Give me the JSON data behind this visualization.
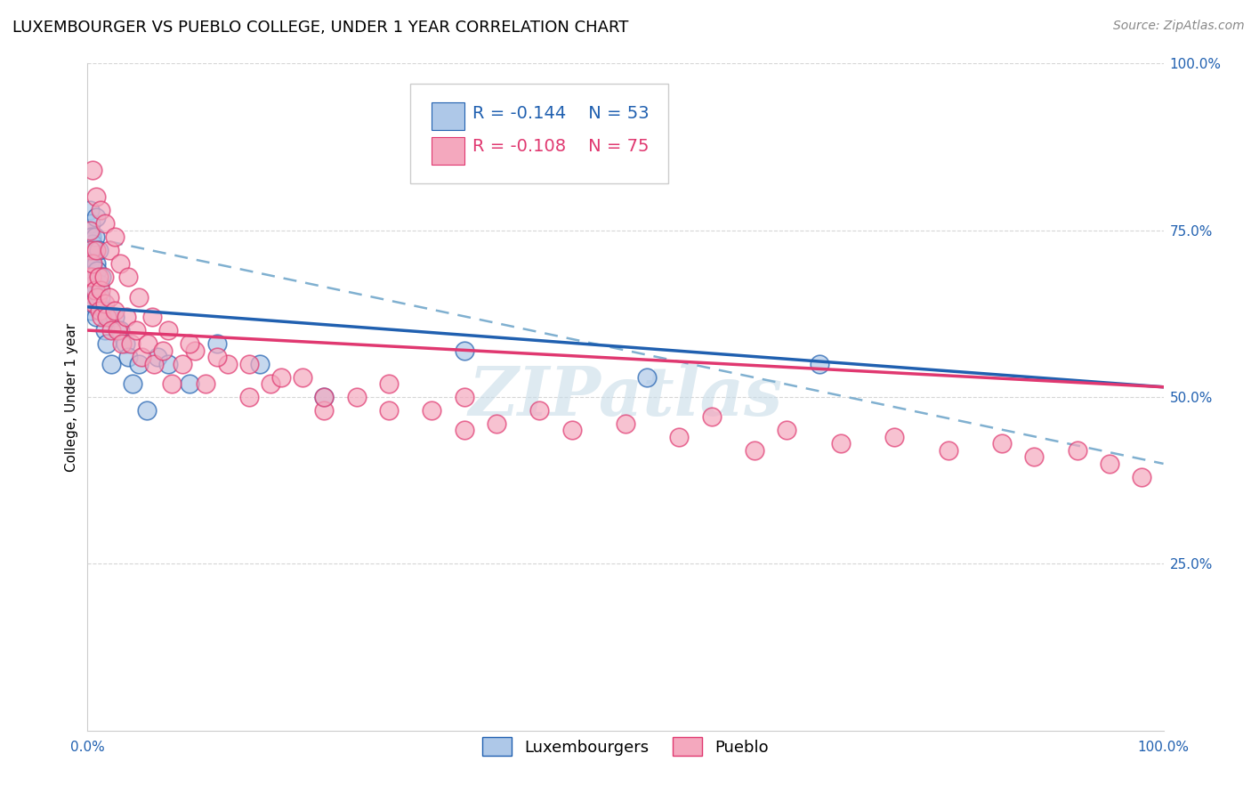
{
  "title": "LUXEMBOURGER VS PUEBLO COLLEGE, UNDER 1 YEAR CORRELATION CHART",
  "source": "Source: ZipAtlas.com",
  "ylabel": "College, Under 1 year",
  "R1": "-0.144",
  "N1": "53",
  "R2": "-0.108",
  "N2": "75",
  "blue_color": "#aec8e8",
  "pink_color": "#f4a8be",
  "blue_line_color": "#2060b0",
  "pink_line_color": "#e03870",
  "dashed_line_color": "#80b0d0",
  "watermark_color": "#c8dce8",
  "legend_label1": "Luxembourgers",
  "legend_label2": "Pueblo",
  "blue_scatter_x": [
    0.001,
    0.001,
    0.001,
    0.001,
    0.002,
    0.002,
    0.002,
    0.002,
    0.002,
    0.003,
    0.003,
    0.003,
    0.003,
    0.004,
    0.004,
    0.004,
    0.005,
    0.005,
    0.005,
    0.006,
    0.006,
    0.007,
    0.007,
    0.008,
    0.008,
    0.008,
    0.009,
    0.01,
    0.01,
    0.011,
    0.012,
    0.013,
    0.015,
    0.016,
    0.018,
    0.02,
    0.022,
    0.025,
    0.03,
    0.035,
    0.038,
    0.042,
    0.048,
    0.055,
    0.065,
    0.075,
    0.095,
    0.12,
    0.16,
    0.22,
    0.35,
    0.52,
    0.68
  ],
  "blue_scatter_y": [
    0.75,
    0.72,
    0.7,
    0.68,
    0.78,
    0.74,
    0.71,
    0.68,
    0.65,
    0.76,
    0.72,
    0.67,
    0.63,
    0.74,
    0.7,
    0.66,
    0.73,
    0.68,
    0.64,
    0.72,
    0.67,
    0.74,
    0.66,
    0.77,
    0.7,
    0.62,
    0.69,
    0.72,
    0.64,
    0.67,
    0.65,
    0.68,
    0.63,
    0.6,
    0.58,
    0.62,
    0.55,
    0.62,
    0.6,
    0.58,
    0.56,
    0.52,
    0.55,
    0.48,
    0.56,
    0.55,
    0.52,
    0.58,
    0.55,
    0.5,
    0.57,
    0.53,
    0.55
  ],
  "pink_scatter_x": [
    0.001,
    0.002,
    0.003,
    0.004,
    0.005,
    0.006,
    0.007,
    0.008,
    0.009,
    0.01,
    0.011,
    0.012,
    0.013,
    0.015,
    0.016,
    0.018,
    0.02,
    0.022,
    0.025,
    0.028,
    0.032,
    0.036,
    0.04,
    0.045,
    0.05,
    0.056,
    0.062,
    0.07,
    0.078,
    0.088,
    0.1,
    0.11,
    0.13,
    0.15,
    0.17,
    0.2,
    0.22,
    0.25,
    0.28,
    0.32,
    0.35,
    0.38,
    0.42,
    0.45,
    0.5,
    0.55,
    0.58,
    0.62,
    0.65,
    0.7,
    0.75,
    0.8,
    0.85,
    0.88,
    0.92,
    0.95,
    0.98,
    0.005,
    0.008,
    0.012,
    0.016,
    0.02,
    0.025,
    0.03,
    0.038,
    0.048,
    0.06,
    0.075,
    0.095,
    0.12,
    0.15,
    0.18,
    0.22,
    0.28,
    0.35
  ],
  "pink_scatter_y": [
    0.68,
    0.75,
    0.72,
    0.68,
    0.7,
    0.64,
    0.66,
    0.72,
    0.65,
    0.68,
    0.63,
    0.66,
    0.62,
    0.68,
    0.64,
    0.62,
    0.65,
    0.6,
    0.63,
    0.6,
    0.58,
    0.62,
    0.58,
    0.6,
    0.56,
    0.58,
    0.55,
    0.57,
    0.52,
    0.55,
    0.57,
    0.52,
    0.55,
    0.5,
    0.52,
    0.53,
    0.48,
    0.5,
    0.52,
    0.48,
    0.5,
    0.46,
    0.48,
    0.45,
    0.46,
    0.44,
    0.47,
    0.42,
    0.45,
    0.43,
    0.44,
    0.42,
    0.43,
    0.41,
    0.42,
    0.4,
    0.38,
    0.84,
    0.8,
    0.78,
    0.76,
    0.72,
    0.74,
    0.7,
    0.68,
    0.65,
    0.62,
    0.6,
    0.58,
    0.56,
    0.55,
    0.53,
    0.5,
    0.48,
    0.45
  ],
  "xlim": [
    0.0,
    1.0
  ],
  "ylim": [
    0.0,
    1.0
  ],
  "xticks": [
    0.0,
    0.25,
    0.5,
    0.75,
    1.0
  ],
  "xticklabels": [
    "0.0%",
    "",
    "",
    "",
    "100.0%"
  ],
  "yticks": [
    0.25,
    0.5,
    0.75,
    1.0
  ],
  "yticklabels": [
    "25.0%",
    "50.0%",
    "75.0%",
    "100.0%"
  ],
  "right_yticks": [
    0.25,
    0.5,
    0.75,
    1.0
  ],
  "right_yticklabels": [
    "25.0%",
    "50.0%",
    "75.0%",
    "100.0%"
  ],
  "background_color": "#ffffff",
  "title_fontsize": 13,
  "source_fontsize": 10,
  "tick_fontsize": 11,
  "ylabel_fontsize": 11,
  "legend_fontsize": 14
}
